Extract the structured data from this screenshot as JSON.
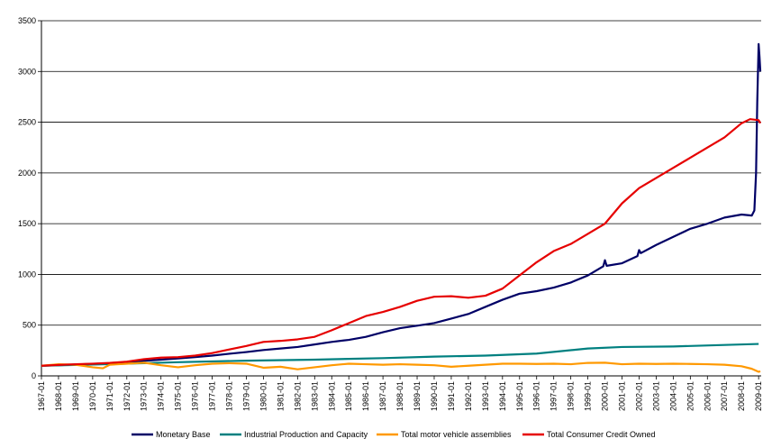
{
  "chart_data": {
    "type": "line",
    "title": "",
    "xlabel": "",
    "ylabel": "",
    "ylim": [
      0,
      3500
    ],
    "yticks": [
      0,
      500,
      1000,
      1500,
      2000,
      2500,
      3000,
      3500
    ],
    "grid": "horizontal",
    "legend_position": "bottom",
    "categories": [
      "1967-01",
      "1968-01",
      "1969-01",
      "1970-01",
      "1971-01",
      "1972-01",
      "1973-01",
      "1974-01",
      "1975-01",
      "1976-01",
      "1977-01",
      "1978-01",
      "1979-01",
      "1980-01",
      "1981-01",
      "1982-01",
      "1983-01",
      "1984-01",
      "1985-01",
      "1986-01",
      "1987-01",
      "1988-01",
      "1989-01",
      "1990-01",
      "1991-01",
      "1992-01",
      "1993-01",
      "1994-01",
      "1995-01",
      "1996-01",
      "1997-01",
      "1998-01",
      "1999-01",
      "2000-01",
      "2001-01",
      "2002-01",
      "2003-01",
      "2004-01",
      "2005-01",
      "2006-01",
      "2007-01",
      "2008-01",
      "2009-01"
    ],
    "series": [
      {
        "name": "Monetary Base",
        "color": "#000066",
        "points": [
          [
            1967,
            100
          ],
          [
            1968,
            105
          ],
          [
            1969,
            112
          ],
          [
            1970,
            118
          ],
          [
            1971,
            125
          ],
          [
            1972,
            135
          ],
          [
            1973,
            148
          ],
          [
            1974,
            160
          ],
          [
            1975,
            172
          ],
          [
            1976,
            185
          ],
          [
            1977,
            200
          ],
          [
            1978,
            218
          ],
          [
            1979,
            235
          ],
          [
            1980,
            255
          ],
          [
            1981,
            270
          ],
          [
            1982,
            285
          ],
          [
            1983,
            310
          ],
          [
            1984,
            335
          ],
          [
            1985,
            355
          ],
          [
            1986,
            385
          ],
          [
            1987,
            430
          ],
          [
            1988,
            470
          ],
          [
            1989,
            495
          ],
          [
            1990,
            520
          ],
          [
            1991,
            565
          ],
          [
            1992,
            610
          ],
          [
            1993,
            680
          ],
          [
            1994,
            750
          ],
          [
            1995,
            810
          ],
          [
            1996,
            835
          ],
          [
            1997,
            870
          ],
          [
            1998,
            920
          ],
          [
            1999,
            990
          ],
          [
            1999.9,
            1080
          ],
          [
            2000.0,
            1140
          ],
          [
            2000.1,
            1085
          ],
          [
            2001,
            1110
          ],
          [
            2001.9,
            1180
          ],
          [
            2002.0,
            1240
          ],
          [
            2002.1,
            1210
          ],
          [
            2003,
            1290
          ],
          [
            2004,
            1370
          ],
          [
            2005,
            1450
          ],
          [
            2006,
            1500
          ],
          [
            2007,
            1560
          ],
          [
            2008,
            1590
          ],
          [
            2008.6,
            1580
          ],
          [
            2008.75,
            1630
          ],
          [
            2008.85,
            2000
          ],
          [
            2008.92,
            2700
          ],
          [
            2009.0,
            3270
          ],
          [
            2009.05,
            3150
          ],
          [
            2009.1,
            3000
          ]
        ]
      },
      {
        "name": "Industrial Production and Capacity",
        "color": "#008080",
        "points": [
          [
            1967,
            100
          ],
          [
            1970,
            112
          ],
          [
            1973,
            125
          ],
          [
            1975,
            135
          ],
          [
            1979,
            150
          ],
          [
            1983,
            160
          ],
          [
            1987,
            175
          ],
          [
            1990,
            190
          ],
          [
            1993,
            200
          ],
          [
            1996,
            220
          ],
          [
            1999,
            270
          ],
          [
            2001,
            285
          ],
          [
            2004,
            290
          ],
          [
            2007,
            305
          ],
          [
            2009,
            315
          ]
        ]
      },
      {
        "name": "Total motor vehicle assemblies",
        "color": "#FF9900",
        "points": [
          [
            1967,
            100
          ],
          [
            1968,
            115
          ],
          [
            1969,
            110
          ],
          [
            1970,
            85
          ],
          [
            1970.6,
            75
          ],
          [
            1971,
            110
          ],
          [
            1972,
            120
          ],
          [
            1973,
            130
          ],
          [
            1974,
            105
          ],
          [
            1975,
            85
          ],
          [
            1976,
            105
          ],
          [
            1977,
            120
          ],
          [
            1978,
            125
          ],
          [
            1979,
            120
          ],
          [
            1980,
            80
          ],
          [
            1981,
            90
          ],
          [
            1982,
            65
          ],
          [
            1983,
            85
          ],
          [
            1984,
            105
          ],
          [
            1985,
            120
          ],
          [
            1986,
            115
          ],
          [
            1987,
            110
          ],
          [
            1988,
            115
          ],
          [
            1989,
            110
          ],
          [
            1990,
            105
          ],
          [
            1991,
            90
          ],
          [
            1992,
            100
          ],
          [
            1993,
            110
          ],
          [
            1994,
            120
          ],
          [
            1995,
            120
          ],
          [
            1996,
            118
          ],
          [
            1997,
            120
          ],
          [
            1998,
            115
          ],
          [
            1999,
            128
          ],
          [
            2000,
            130
          ],
          [
            2001,
            115
          ],
          [
            2002,
            120
          ],
          [
            2003,
            118
          ],
          [
            2004,
            120
          ],
          [
            2005,
            118
          ],
          [
            2006,
            115
          ],
          [
            2007,
            110
          ],
          [
            2008,
            95
          ],
          [
            2008.6,
            70
          ],
          [
            2009,
            40
          ],
          [
            2009.1,
            45
          ]
        ]
      },
      {
        "name": "Total Consumer Credit Owned",
        "color": "#E60000",
        "points": [
          [
            1967,
            100
          ],
          [
            1968,
            108
          ],
          [
            1969,
            115
          ],
          [
            1970,
            120
          ],
          [
            1971,
            128
          ],
          [
            1972,
            140
          ],
          [
            1973,
            165
          ],
          [
            1974,
            180
          ],
          [
            1975,
            185
          ],
          [
            1976,
            200
          ],
          [
            1977,
            225
          ],
          [
            1978,
            260
          ],
          [
            1979,
            295
          ],
          [
            1980,
            335
          ],
          [
            1981,
            345
          ],
          [
            1982,
            360
          ],
          [
            1983,
            385
          ],
          [
            1984,
            450
          ],
          [
            1985,
            520
          ],
          [
            1986,
            590
          ],
          [
            1987,
            630
          ],
          [
            1988,
            680
          ],
          [
            1989,
            740
          ],
          [
            1990,
            780
          ],
          [
            1991,
            785
          ],
          [
            1992,
            770
          ],
          [
            1993,
            790
          ],
          [
            1994,
            860
          ],
          [
            1995,
            990
          ],
          [
            1996,
            1120
          ],
          [
            1997,
            1230
          ],
          [
            1998,
            1300
          ],
          [
            1999,
            1400
          ],
          [
            2000,
            1500
          ],
          [
            2001,
            1700
          ],
          [
            2002,
            1850
          ],
          [
            2003,
            1950
          ],
          [
            2004,
            2050
          ],
          [
            2005,
            2150
          ],
          [
            2006,
            2250
          ],
          [
            2007,
            2350
          ],
          [
            2008,
            2490
          ],
          [
            2008.5,
            2530
          ],
          [
            2009,
            2520
          ],
          [
            2009.1,
            2490
          ]
        ]
      }
    ]
  }
}
